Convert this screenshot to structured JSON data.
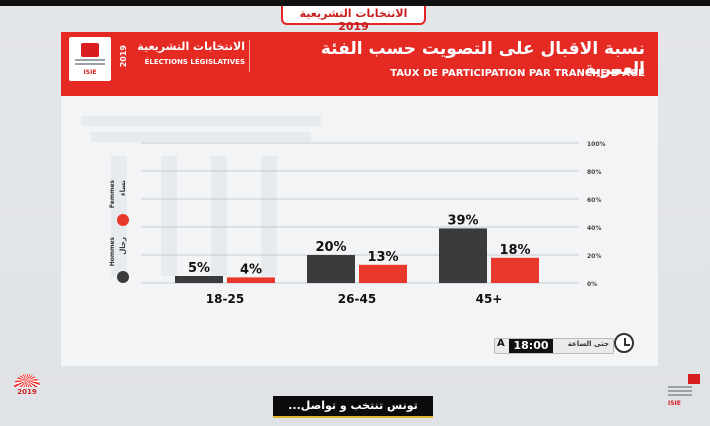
{
  "top_tab": {
    "text": "الانتخابات التشريعية 2019"
  },
  "header": {
    "year": "2019",
    "elections_ar": "الانتخابات التشريعية",
    "elections_fr": "ÉLECTIONS LÉGISLATIVES",
    "title_ar": "نسبة الاقبال على التصويت حسب الفئة العمرية",
    "title_fr": "TAUX DE PARTICIPATION PAR TRANCHE D'AGE",
    "logo_text": "ISIE"
  },
  "legend": {
    "women_ar": "نساء",
    "women_fr": "Femmes",
    "men_ar": "رجال",
    "men_fr": "Hommes"
  },
  "clock": {
    "prefix": "A",
    "time": "18:00",
    "label_ar": "حتى الساعة"
  },
  "bottom_banner": {
    "text": "تونس تنتخب و تواصل..."
  },
  "bottom_left_logo": {
    "text": "2019"
  },
  "colors": {
    "men": "#3a3b3c",
    "women": "#e8372b",
    "accent": "#e52a24"
  },
  "chart_data": {
    "type": "bar",
    "categories": [
      "18-25",
      "26-45",
      "45+"
    ],
    "series": [
      {
        "name": "Hommes",
        "values": [
          5,
          20,
          39
        ],
        "labels": [
          "5%",
          "20%",
          "39%"
        ]
      },
      {
        "name": "Femmes",
        "values": [
          4,
          13,
          18
        ],
        "labels": [
          "4%",
          "13%",
          "18%"
        ]
      }
    ],
    "ylim": [
      0,
      100
    ],
    "yticks": [
      0,
      20,
      40,
      60,
      80,
      100
    ],
    "ytick_labels": [
      "0%",
      "20%",
      "40%",
      "60%",
      "80%",
      "100%"
    ],
    "grid": true,
    "axis_side": "right",
    "legend_position": "left"
  }
}
